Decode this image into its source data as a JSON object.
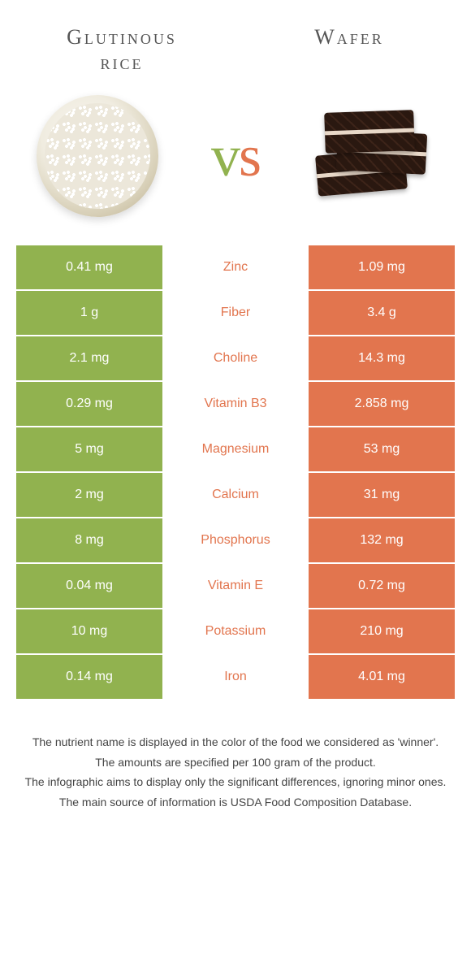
{
  "food_left": {
    "name": "Glutinous\nrice",
    "color": "#91b24f"
  },
  "food_right": {
    "name": "Wafer",
    "color": "#e2754e"
  },
  "vs": {
    "v_color": "#91b24f",
    "s_color": "#e2754e"
  },
  "table_colors": {
    "left_bg": "#91b24f",
    "right_bg": "#e2754e",
    "left_text": "#ffffff",
    "right_text": "#ffffff"
  },
  "rows": [
    {
      "nutrient": "Zinc",
      "left": "0.41 mg",
      "right": "1.09 mg",
      "winner": "right"
    },
    {
      "nutrient": "Fiber",
      "left": "1 g",
      "right": "3.4 g",
      "winner": "right"
    },
    {
      "nutrient": "Choline",
      "left": "2.1 mg",
      "right": "14.3 mg",
      "winner": "right"
    },
    {
      "nutrient": "Vitamin B3",
      "left": "0.29 mg",
      "right": "2.858 mg",
      "winner": "right"
    },
    {
      "nutrient": "Magnesium",
      "left": "5 mg",
      "right": "53 mg",
      "winner": "right"
    },
    {
      "nutrient": "Calcium",
      "left": "2 mg",
      "right": "31 mg",
      "winner": "right"
    },
    {
      "nutrient": "Phosphorus",
      "left": "8 mg",
      "right": "132 mg",
      "winner": "right"
    },
    {
      "nutrient": "Vitamin E",
      "left": "0.04 mg",
      "right": "0.72 mg",
      "winner": "right"
    },
    {
      "nutrient": "Potassium",
      "left": "10 mg",
      "right": "210 mg",
      "winner": "right"
    },
    {
      "nutrient": "Iron",
      "left": "0.14 mg",
      "right": "4.01 mg",
      "winner": "right"
    }
  ],
  "footer": {
    "line1": "The nutrient name is displayed in the color of the food we considered as 'winner'.",
    "line2": "The amounts are specified per 100 gram of the product.",
    "line3": "The infographic aims to display only the significant differences, ignoring minor ones.",
    "line4": "The main source of information is USDA Food Composition Database."
  }
}
